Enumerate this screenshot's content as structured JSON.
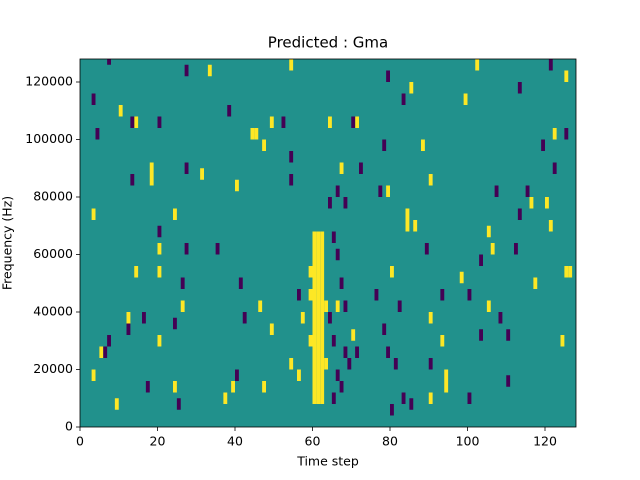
{
  "chart_data": {
    "type": "heatmap",
    "title": "Predicted : Gma",
    "x_label": "Time step",
    "y_label": "Frequency (Hz)",
    "xlim": [
      0,
      128
    ],
    "ylim": [
      0,
      128000
    ],
    "xticks": [
      0,
      20,
      40,
      60,
      80,
      100,
      120
    ],
    "yticks": [
      0,
      20000,
      40000,
      60000,
      80000,
      100000,
      120000
    ],
    "colors": [
      "#21918c",
      "#440154",
      "#fde725"
    ],
    "cells": {
      "x": [
        60,
        60,
        60,
        60,
        60,
        60,
        60,
        60,
        60,
        60,
        60,
        60,
        60,
        60,
        60,
        61,
        61,
        61,
        61,
        61,
        61,
        61,
        61,
        61,
        61,
        61,
        61,
        61,
        61,
        61,
        62,
        62,
        62,
        62,
        62,
        62,
        62,
        62,
        62,
        62,
        62,
        62,
        62,
        62,
        62,
        59,
        59,
        59,
        63,
        63,
        33,
        49,
        44,
        45,
        47,
        10,
        14,
        18,
        18,
        31,
        40,
        3,
        24,
        20,
        20,
        14,
        12,
        26,
        5,
        3,
        20,
        24,
        9,
        37,
        39,
        47,
        54,
        56,
        46,
        49,
        57,
        71,
        79,
        84,
        84,
        86,
        80,
        90,
        94,
        93,
        98,
        99,
        102,
        105,
        106,
        116,
        117,
        121,
        125,
        126,
        124,
        125,
        122,
        120,
        88,
        90,
        85,
        94,
        90,
        66,
        70,
        67,
        64,
        54,
        105,
        7,
        27,
        3,
        38,
        20,
        4,
        13,
        52,
        54,
        70,
        78,
        79,
        83,
        72,
        77,
        66,
        64,
        68,
        65,
        66,
        67,
        68,
        64,
        65,
        68,
        69,
        66,
        71,
        65,
        67,
        76,
        78,
        79,
        82,
        80,
        85,
        81,
        90,
        93,
        100,
        103,
        108,
        112,
        113,
        107,
        115,
        122,
        119,
        125,
        113,
        121,
        16,
        12,
        7,
        6,
        26,
        24,
        27,
        13,
        20,
        27,
        35,
        41,
        42,
        40,
        25,
        17,
        83,
        100,
        110,
        103,
        110,
        89,
        56,
        54
      ],
      "y": [
        8000,
        12000,
        16000,
        20000,
        24000,
        28000,
        32000,
        36000,
        40000,
        44000,
        48000,
        52000,
        56000,
        60000,
        64000,
        8000,
        12000,
        16000,
        20000,
        24000,
        28000,
        32000,
        36000,
        40000,
        44000,
        48000,
        52000,
        56000,
        60000,
        64000,
        8000,
        12000,
        16000,
        20000,
        24000,
        28000,
        32000,
        36000,
        40000,
        44000,
        48000,
        52000,
        56000,
        60000,
        64000,
        28000,
        44000,
        52000,
        20000,
        40000,
        122000,
        104000,
        100000,
        100000,
        96000,
        108000,
        104000,
        84000,
        88000,
        86000,
        82000,
        72000,
        72000,
        60000,
        52000,
        52000,
        36000,
        40000,
        24000,
        16000,
        28000,
        12000,
        6000,
        8000,
        12000,
        12000,
        20000,
        16000,
        40000,
        32000,
        36000,
        104000,
        80000,
        72000,
        68000,
        68000,
        52000,
        36000,
        16000,
        28000,
        50000,
        112000,
        124000,
        40000,
        60000,
        76000,
        48000,
        68000,
        52000,
        52000,
        28000,
        120000,
        100000,
        76000,
        96000,
        84000,
        116000,
        12000,
        8000,
        40000,
        30000,
        88000,
        104000,
        124000,
        66000,
        126000,
        122000,
        112000,
        108000,
        104000,
        100000,
        104000,
        104000,
        92000,
        104000,
        96000,
        120000,
        112000,
        88000,
        80000,
        80000,
        76000,
        76000,
        64000,
        58000,
        48000,
        40000,
        36000,
        28000,
        24000,
        20000,
        16000,
        24000,
        8000,
        12000,
        44000,
        32000,
        24000,
        40000,
        4000,
        6000,
        20000,
        20000,
        44000,
        44000,
        56000,
        36000,
        60000,
        72000,
        80000,
        80000,
        88000,
        96000,
        100000,
        116000,
        124000,
        36000,
        32000,
        28000,
        24000,
        48000,
        34000,
        88000,
        84000,
        66000,
        60000,
        60000,
        48000,
        36000,
        16000,
        6000,
        12000,
        8000,
        8000,
        14000,
        30000,
        30000,
        60000,
        44000,
        84000
      ],
      "z": [
        2,
        2,
        2,
        2,
        2,
        2,
        2,
        2,
        2,
        2,
        2,
        2,
        2,
        2,
        2,
        2,
        2,
        2,
        2,
        2,
        2,
        2,
        2,
        2,
        2,
        2,
        2,
        2,
        2,
        2,
        2,
        2,
        2,
        2,
        2,
        2,
        2,
        2,
        2,
        2,
        2,
        2,
        2,
        2,
        2,
        2,
        2,
        2,
        2,
        2,
        2,
        2,
        2,
        2,
        2,
        2,
        2,
        2,
        2,
        2,
        2,
        2,
        2,
        2,
        2,
        2,
        2,
        2,
        2,
        2,
        2,
        2,
        2,
        2,
        2,
        2,
        2,
        2,
        2,
        2,
        2,
        2,
        2,
        2,
        2,
        2,
        2,
        2,
        2,
        2,
        2,
        2,
        2,
        2,
        2,
        2,
        2,
        2,
        2,
        2,
        2,
        2,
        2,
        2,
        2,
        2,
        2,
        2,
        2,
        2,
        2,
        2,
        2,
        2,
        2,
        1,
        1,
        1,
        1,
        1,
        1,
        1,
        1,
        1,
        1,
        1,
        1,
        1,
        1,
        1,
        1,
        1,
        1,
        1,
        1,
        1,
        1,
        1,
        1,
        1,
        1,
        1,
        1,
        1,
        1,
        1,
        1,
        1,
        1,
        1,
        1,
        1,
        1,
        1,
        1,
        1,
        1,
        1,
        1,
        1,
        1,
        1,
        1,
        1,
        1,
        1,
        1,
        1,
        1,
        1,
        1,
        1,
        1,
        1,
        1,
        1,
        1,
        1,
        1,
        1,
        1,
        1,
        1,
        1,
        1,
        1,
        1,
        1,
        1,
        1
      ]
    }
  }
}
